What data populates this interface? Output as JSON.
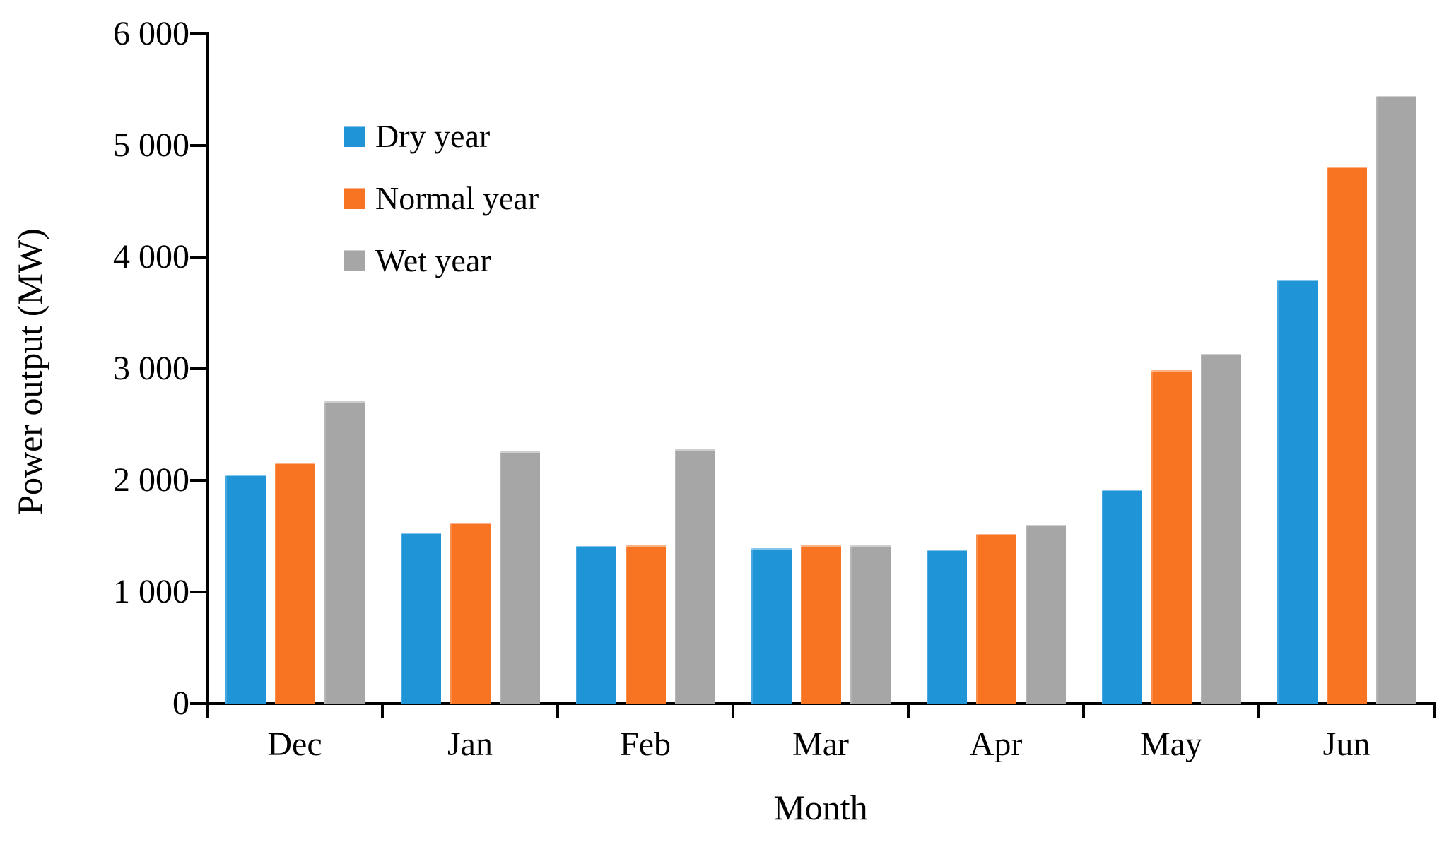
{
  "chart_data": {
    "type": "bar",
    "title": "",
    "xlabel": "Month",
    "ylabel": "Power output (MW)",
    "categories": [
      "Dec",
      "Jan",
      "Feb",
      "Mar",
      "Apr",
      "May",
      "Jun"
    ],
    "series": [
      {
        "name": "Dry year",
        "color": "#1F95D8",
        "values": [
          2050,
          1530,
          1410,
          1390,
          1380,
          1920,
          3800
        ]
      },
      {
        "name": "Normal year",
        "color": "#F87423",
        "values": [
          2160,
          1620,
          1420,
          1420,
          1520,
          2990,
          4810
        ]
      },
      {
        "name": "Wet year",
        "color": "#A6A6A6",
        "values": [
          2710,
          2260,
          2280,
          1420,
          1600,
          3130,
          5440
        ]
      }
    ],
    "ylim": [
      0,
      6000
    ],
    "y_tick_interval": 1000,
    "y_tick_labels": [
      "0",
      "1 000",
      "2 000",
      "3 000",
      "4 000",
      "5 000",
      "6 000"
    ],
    "grid": false,
    "legend_position": "top-left-inside",
    "axis_color": "#000000",
    "text_color": "#000000"
  }
}
